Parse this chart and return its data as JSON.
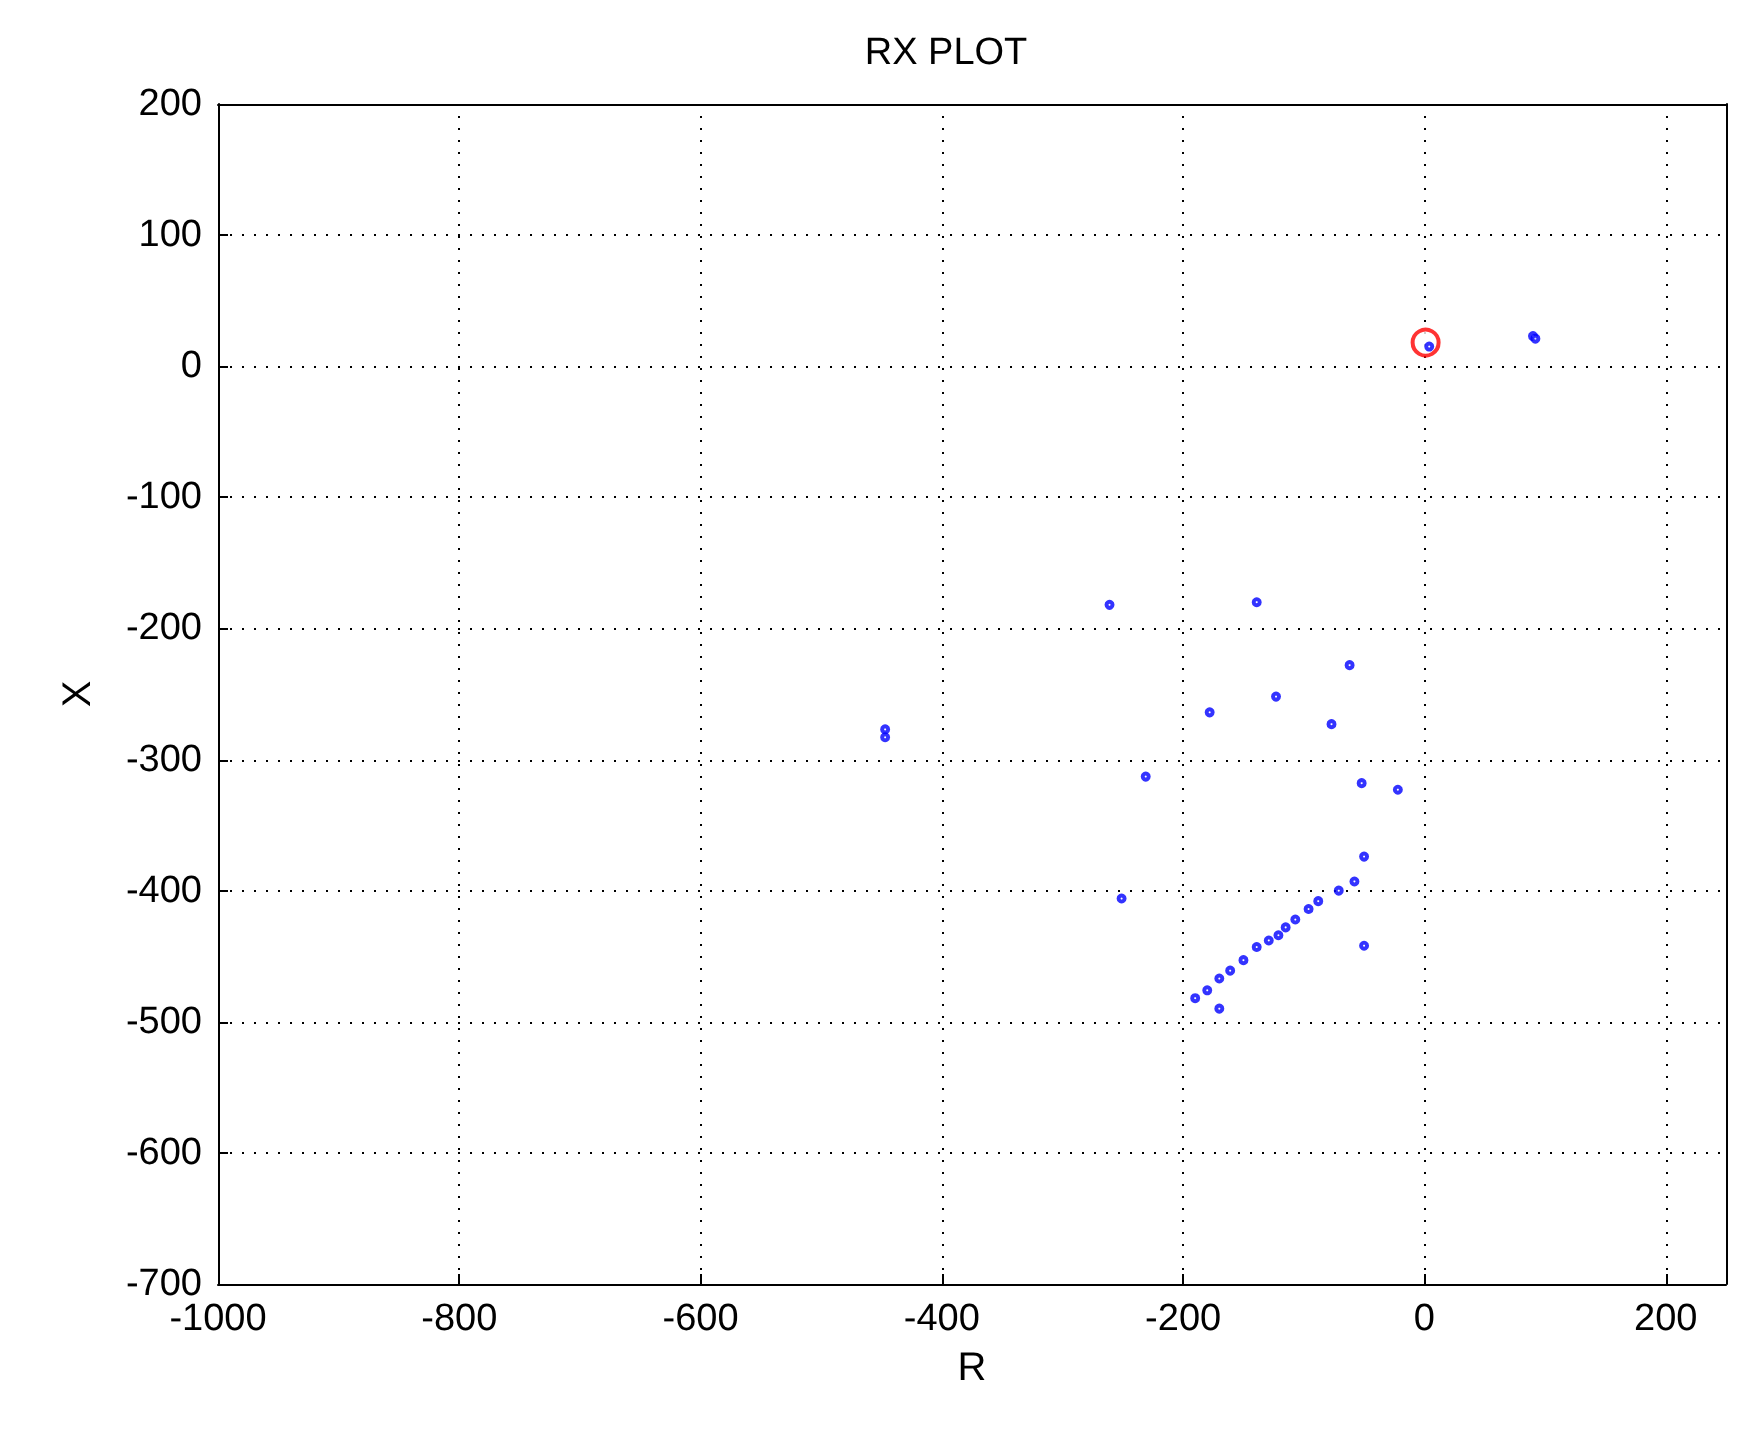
{
  "chart_data": {
    "type": "scatter",
    "title": "RX PLOT",
    "xlabel": "R",
    "ylabel": "X",
    "xlim": [
      -1000,
      250
    ],
    "ylim": [
      -700,
      200
    ],
    "xticks": [
      -1000,
      -800,
      -600,
      -400,
      -200,
      0,
      200
    ],
    "yticks": [
      -700,
      -600,
      -500,
      -400,
      -300,
      -200,
      -100,
      0,
      100,
      200
    ],
    "grid": true,
    "marker": "circle",
    "series": [
      {
        "color": "#ff0000",
        "x": [
          1
        ],
        "values": [
          18
        ]
      },
      {
        "color": "#0000ff",
        "x": [
          -261,
          -139,
          -62,
          -123,
          -178,
          -77,
          -231,
          -52,
          -22,
          -50,
          -58,
          -71,
          -88,
          -96,
          -107,
          -115,
          -121,
          -129,
          -139,
          -150,
          -161,
          -170,
          -180,
          -190,
          -170,
          -251,
          -50,
          -447,
          -447,
          4,
          90,
          92
        ],
        "values": [
          -182,
          -180,
          -228,
          -252,
          -264,
          -273,
          -313,
          -318,
          -323,
          -374,
          -393,
          -400,
          -408,
          -414,
          -422,
          -428,
          -434,
          -438,
          -443,
          -453,
          -461,
          -467,
          -476,
          -482,
          -490,
          -406,
          -442,
          -277,
          -283,
          15,
          23,
          21
        ]
      }
    ]
  }
}
